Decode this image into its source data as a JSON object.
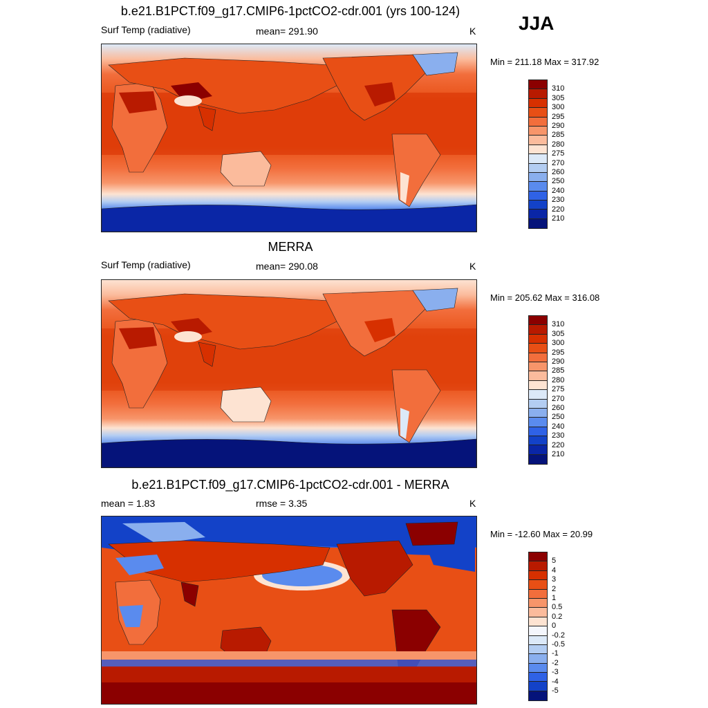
{
  "season": "JJA",
  "panels": [
    {
      "title": "b.e21.B1PCT.f09_g17.CMIP6-1pctCO2-cdr.001 (yrs 100-124)",
      "left_label": "Surf Temp (radiative)",
      "center_label": "mean= 291.90",
      "units": "K",
      "minmax": "Min = 211.18 Max = 317.92"
    },
    {
      "title": "MERRA",
      "left_label": "Surf Temp (radiative)",
      "center_label": "mean= 290.08",
      "units": "K",
      "minmax": "Min = 205.62 Max = 316.08"
    },
    {
      "title": "b.e21.B1PCT.f09_g17.CMIP6-1pctCO2-cdr.001 - MERRA",
      "left_label": "mean =   1.83",
      "center_label": "rmse =   3.35",
      "units": "K",
      "minmax": "Min = -12.60 Max =  20.99"
    }
  ],
  "colorbars": {
    "absolute": {
      "labels": [
        "310",
        "305",
        "300",
        "295",
        "290",
        "285",
        "280",
        "275",
        "270",
        "260",
        "250",
        "240",
        "230",
        "220",
        "210"
      ],
      "colors": [
        "#8b0000",
        "#b81a00",
        "#d73000",
        "#e84f15",
        "#f26e3c",
        "#f7956a",
        "#fbbb9c",
        "#fde3d2",
        "#dce9f8",
        "#b3cdf2",
        "#8aafee",
        "#5a8bee",
        "#2f62e6",
        "#1342c8",
        "#0a26a6",
        "#05137a"
      ]
    },
    "difference": {
      "labels": [
        "5",
        "4",
        "3",
        "2",
        "1",
        "0.5",
        "0.2",
        "0",
        "-0.2",
        "-0.5",
        "-1",
        "-2",
        "-3",
        "-4",
        "-5"
      ],
      "colors": [
        "#8b0000",
        "#b81a00",
        "#d73000",
        "#e84f15",
        "#f26e3c",
        "#f7956a",
        "#fbbb9c",
        "#fde3d2",
        "#f4f6fc",
        "#dce9f8",
        "#b3cdf2",
        "#8aafee",
        "#5a8bee",
        "#2f62e6",
        "#1342c8",
        "#05137a"
      ]
    }
  }
}
